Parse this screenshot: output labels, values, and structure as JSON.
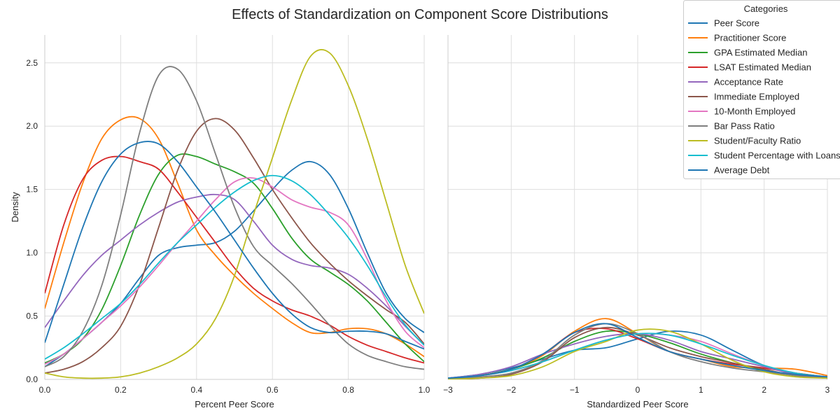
{
  "figure": {
    "title": "Effects of Standardization on Component Score Distributions"
  },
  "legend": {
    "title": "Categories",
    "placement": "top-right",
    "entries": [
      {
        "label": "Peer Score",
        "color": "#1f77b4"
      },
      {
        "label": "Practitioner Score",
        "color": "#ff7f0e"
      },
      {
        "label": "GPA Estimated Median",
        "color": "#2ca02c"
      },
      {
        "label": "LSAT Estimated Median",
        "color": "#d62728"
      },
      {
        "label": "Acceptance Rate",
        "color": "#9467bd"
      },
      {
        "label": "Immediate Employed",
        "color": "#8c564b"
      },
      {
        "label": "10-Month Employed",
        "color": "#e377c2"
      },
      {
        "label": "Bar Pass Ratio",
        "color": "#7f7f7f"
      },
      {
        "label": "Student/Faculty Ratio",
        "color": "#bcbd22"
      },
      {
        "label": "Student Percentage with Loans",
        "color": "#17becf"
      },
      {
        "label": "Average Debt",
        "color": "#1f77b4"
      }
    ]
  },
  "chart_data": [
    {
      "type": "line",
      "xlabel": "Percent Peer Score",
      "ylabel": "Density",
      "xlim": [
        0,
        1
      ],
      "ylim": [
        0,
        2.72
      ],
      "xticks": [
        "0.0",
        "0.2",
        "0.4",
        "0.6",
        "0.8",
        "1.0"
      ],
      "xtick_values": [
        0,
        0.2,
        0.4,
        0.6,
        0.8,
        1.0
      ],
      "yticks": [
        "0.0",
        "0.5",
        "1.0",
        "1.5",
        "2.0",
        "2.5"
      ],
      "ytick_values": [
        0,
        0.5,
        1.0,
        1.5,
        2.0,
        2.5
      ],
      "grid": true,
      "series": [
        {
          "name": "Peer Score",
          "color": "#1f77b4",
          "x": [
            0,
            0.05,
            0.1,
            0.15,
            0.2,
            0.25,
            0.3,
            0.35,
            0.4,
            0.45,
            0.5,
            0.55,
            0.6,
            0.65,
            0.7,
            0.75,
            0.8,
            0.85,
            0.9,
            0.95,
            1
          ],
          "y": [
            0.1,
            0.2,
            0.32,
            0.45,
            0.6,
            0.8,
            0.98,
            1.04,
            1.06,
            1.08,
            1.17,
            1.33,
            1.5,
            1.65,
            1.72,
            1.62,
            1.35,
            1.0,
            0.68,
            0.48,
            0.37
          ]
        },
        {
          "name": "Practitioner Score",
          "color": "#ff7f0e",
          "x": [
            0,
            0.05,
            0.1,
            0.15,
            0.2,
            0.25,
            0.3,
            0.35,
            0.4,
            0.45,
            0.5,
            0.55,
            0.6,
            0.65,
            0.7,
            0.75,
            0.8,
            0.85,
            0.9,
            0.95,
            1
          ],
          "y": [
            0.56,
            1.08,
            1.55,
            1.9,
            2.05,
            2.06,
            1.9,
            1.55,
            1.18,
            0.98,
            0.82,
            0.68,
            0.56,
            0.45,
            0.37,
            0.37,
            0.4,
            0.4,
            0.36,
            0.28,
            0.18
          ]
        },
        {
          "name": "GPA Estimated Median",
          "color": "#2ca02c",
          "x": [
            0,
            0.05,
            0.1,
            0.15,
            0.2,
            0.25,
            0.3,
            0.35,
            0.4,
            0.45,
            0.5,
            0.55,
            0.6,
            0.65,
            0.7,
            0.75,
            0.8,
            0.85,
            0.9,
            0.95,
            1
          ],
          "y": [
            0.13,
            0.2,
            0.32,
            0.55,
            0.9,
            1.3,
            1.62,
            1.77,
            1.76,
            1.7,
            1.64,
            1.55,
            1.35,
            1.12,
            0.95,
            0.85,
            0.75,
            0.62,
            0.45,
            0.28,
            0.14
          ]
        },
        {
          "name": "LSAT Estimated Median",
          "color": "#d62728",
          "x": [
            0,
            0.05,
            0.1,
            0.15,
            0.2,
            0.25,
            0.3,
            0.35,
            0.4,
            0.45,
            0.5,
            0.55,
            0.6,
            0.65,
            0.7,
            0.75,
            0.8,
            0.85,
            0.9,
            0.95,
            1
          ],
          "y": [
            0.68,
            1.22,
            1.58,
            1.73,
            1.76,
            1.72,
            1.66,
            1.48,
            1.28,
            1.08,
            0.88,
            0.72,
            0.62,
            0.55,
            0.5,
            0.43,
            0.34,
            0.27,
            0.22,
            0.17,
            0.13
          ]
        },
        {
          "name": "Acceptance Rate",
          "color": "#9467bd",
          "x": [
            0,
            0.05,
            0.1,
            0.15,
            0.2,
            0.25,
            0.3,
            0.35,
            0.4,
            0.45,
            0.5,
            0.55,
            0.6,
            0.65,
            0.7,
            0.75,
            0.8,
            0.85,
            0.9,
            0.95,
            1
          ],
          "y": [
            0.41,
            0.62,
            0.82,
            0.98,
            1.1,
            1.22,
            1.32,
            1.4,
            1.44,
            1.46,
            1.42,
            1.25,
            1.06,
            0.95,
            0.9,
            0.88,
            0.83,
            0.72,
            0.58,
            0.42,
            0.27
          ]
        },
        {
          "name": "Immediate Employed",
          "color": "#8c564b",
          "x": [
            0,
            0.05,
            0.1,
            0.15,
            0.2,
            0.25,
            0.3,
            0.35,
            0.4,
            0.45,
            0.5,
            0.55,
            0.6,
            0.65,
            0.7,
            0.75,
            0.8,
            0.85,
            0.9,
            0.95,
            1
          ],
          "y": [
            0.05,
            0.08,
            0.14,
            0.25,
            0.42,
            0.75,
            1.2,
            1.65,
            1.96,
            2.06,
            1.97,
            1.75,
            1.5,
            1.28,
            1.08,
            0.92,
            0.78,
            0.66,
            0.55,
            0.45,
            0.28
          ]
        },
        {
          "name": "10-Month Employed",
          "color": "#e377c2",
          "x": [
            0,
            0.05,
            0.1,
            0.15,
            0.2,
            0.25,
            0.3,
            0.35,
            0.4,
            0.45,
            0.5,
            0.55,
            0.6,
            0.65,
            0.7,
            0.75,
            0.8,
            0.85,
            0.9,
            0.95,
            1
          ],
          "y": [
            0.12,
            0.2,
            0.32,
            0.45,
            0.58,
            0.73,
            0.9,
            1.08,
            1.25,
            1.42,
            1.56,
            1.59,
            1.52,
            1.42,
            1.36,
            1.32,
            1.22,
            0.95,
            0.62,
            0.38,
            0.25
          ]
        },
        {
          "name": "Bar Pass Ratio",
          "color": "#7f7f7f",
          "x": [
            0,
            0.05,
            0.1,
            0.15,
            0.2,
            0.25,
            0.3,
            0.35,
            0.4,
            0.45,
            0.5,
            0.55,
            0.6,
            0.65,
            0.7,
            0.75,
            0.8,
            0.85,
            0.9,
            0.95,
            1
          ],
          "y": [
            0.1,
            0.18,
            0.38,
            0.74,
            1.3,
            1.95,
            2.4,
            2.45,
            2.2,
            1.78,
            1.36,
            1.05,
            0.9,
            0.76,
            0.6,
            0.43,
            0.28,
            0.19,
            0.14,
            0.1,
            0.08
          ]
        },
        {
          "name": "Student/Faculty Ratio",
          "color": "#bcbd22",
          "x": [
            0,
            0.05,
            0.1,
            0.15,
            0.2,
            0.25,
            0.3,
            0.35,
            0.4,
            0.45,
            0.5,
            0.55,
            0.6,
            0.65,
            0.7,
            0.75,
            0.8,
            0.85,
            0.9,
            0.95,
            1
          ],
          "y": [
            0.05,
            0.02,
            0.01,
            0.01,
            0.02,
            0.05,
            0.1,
            0.17,
            0.28,
            0.48,
            0.82,
            1.3,
            1.75,
            2.2,
            2.55,
            2.58,
            2.32,
            1.9,
            1.4,
            0.9,
            0.52
          ]
        },
        {
          "name": "Student Percentage with Loans",
          "color": "#17becf",
          "x": [
            0,
            0.05,
            0.1,
            0.15,
            0.2,
            0.25,
            0.3,
            0.35,
            0.4,
            0.45,
            0.5,
            0.55,
            0.6,
            0.65,
            0.7,
            0.75,
            0.8,
            0.85,
            0.9,
            0.95,
            1
          ],
          "y": [
            0.16,
            0.25,
            0.36,
            0.48,
            0.6,
            0.75,
            0.92,
            1.08,
            1.22,
            1.36,
            1.48,
            1.57,
            1.61,
            1.57,
            1.46,
            1.3,
            1.12,
            0.9,
            0.65,
            0.43,
            0.27
          ]
        },
        {
          "name": "Average Debt",
          "color": "#1f77b4",
          "x": [
            0,
            0.05,
            0.1,
            0.15,
            0.2,
            0.25,
            0.3,
            0.35,
            0.4,
            0.45,
            0.5,
            0.55,
            0.6,
            0.65,
            0.7,
            0.75,
            0.8,
            0.85,
            0.9,
            0.95,
            1
          ],
          "y": [
            0.29,
            0.75,
            1.2,
            1.56,
            1.78,
            1.87,
            1.86,
            1.72,
            1.52,
            1.32,
            1.1,
            0.88,
            0.68,
            0.52,
            0.41,
            0.37,
            0.38,
            0.38,
            0.36,
            0.3,
            0.24
          ]
        }
      ]
    },
    {
      "type": "line",
      "xlabel": "Standardized Peer Score",
      "ylabel": "",
      "xlim": [
        -3,
        3
      ],
      "ylim": [
        0,
        2.72
      ],
      "xticks": [
        "−3",
        "−2",
        "−1",
        "0",
        "1",
        "2",
        "3"
      ],
      "xtick_values": [
        -3,
        -2,
        -1,
        0,
        1,
        2,
        3
      ],
      "grid": true,
      "shared_y": true,
      "series": [
        {
          "name": "Peer Score",
          "color": "#1f77b4",
          "x": [
            -3,
            -2.5,
            -2,
            -1.5,
            -1,
            -0.5,
            0,
            0.5,
            1,
            1.5,
            2,
            2.5,
            3
          ],
          "y": [
            0.01,
            0.04,
            0.09,
            0.16,
            0.23,
            0.25,
            0.32,
            0.38,
            0.35,
            0.23,
            0.11,
            0.05,
            0.02
          ]
        },
        {
          "name": "Practitioner Score",
          "color": "#ff7f0e",
          "x": [
            -3,
            -2.5,
            -2,
            -1.5,
            -1,
            -0.5,
            0,
            0.5,
            1,
            1.5,
            2,
            2.5,
            3
          ],
          "y": [
            0.01,
            0.03,
            0.08,
            0.19,
            0.38,
            0.48,
            0.36,
            0.22,
            0.16,
            0.1,
            0.09,
            0.08,
            0.03
          ]
        },
        {
          "name": "GPA Estimated Median",
          "color": "#2ca02c",
          "x": [
            -3,
            -2.5,
            -2,
            -1.5,
            -1,
            -0.5,
            0,
            0.5,
            1,
            1.5,
            2,
            2.5,
            3
          ],
          "y": [
            0.01,
            0.03,
            0.08,
            0.17,
            0.3,
            0.38,
            0.36,
            0.29,
            0.2,
            0.13,
            0.07,
            0.03,
            0.01
          ]
        },
        {
          "name": "LSAT Estimated Median",
          "color": "#d62728",
          "x": [
            -3,
            -2.5,
            -2,
            -1.5,
            -1,
            -0.5,
            0,
            0.5,
            1,
            1.5,
            2,
            2.5,
            3
          ],
          "y": [
            0.0,
            0.03,
            0.08,
            0.2,
            0.37,
            0.4,
            0.32,
            0.22,
            0.16,
            0.12,
            0.09,
            0.05,
            0.02
          ]
        },
        {
          "name": "Acceptance Rate",
          "color": "#9467bd",
          "x": [
            -3,
            -2.5,
            -2,
            -1.5,
            -1,
            -0.5,
            0,
            0.5,
            1,
            1.5,
            2,
            2.5,
            3
          ],
          "y": [
            0.01,
            0.04,
            0.1,
            0.2,
            0.28,
            0.34,
            0.36,
            0.31,
            0.22,
            0.16,
            0.1,
            0.04,
            0.01
          ]
        },
        {
          "name": "Immediate Employed",
          "color": "#8c564b",
          "x": [
            -3,
            -2.5,
            -2,
            -1.5,
            -1,
            -0.5,
            0,
            0.5,
            1,
            1.5,
            2,
            2.5,
            3
          ],
          "y": [
            0.0,
            0.01,
            0.04,
            0.14,
            0.33,
            0.41,
            0.35,
            0.25,
            0.18,
            0.13,
            0.08,
            0.03,
            0.01
          ]
        },
        {
          "name": "10-Month Employed",
          "color": "#e377c2",
          "x": [
            -3,
            -2.5,
            -2,
            -1.5,
            -1,
            -0.5,
            0,
            0.5,
            1,
            1.5,
            2,
            2.5,
            3
          ],
          "y": [
            0.01,
            0.03,
            0.07,
            0.14,
            0.23,
            0.31,
            0.36,
            0.35,
            0.3,
            0.2,
            0.11,
            0.05,
            0.02
          ]
        },
        {
          "name": "Bar Pass Ratio",
          "color": "#7f7f7f",
          "x": [
            -3,
            -2.5,
            -2,
            -1.5,
            -1,
            -0.5,
            0,
            0.5,
            1,
            1.5,
            2,
            2.5,
            3
          ],
          "y": [
            0.0,
            0.02,
            0.05,
            0.15,
            0.35,
            0.44,
            0.36,
            0.22,
            0.14,
            0.09,
            0.06,
            0.03,
            0.01
          ]
        },
        {
          "name": "Student/Faculty Ratio",
          "color": "#bcbd22",
          "x": [
            -3,
            -2.5,
            -2,
            -1.5,
            -1,
            -0.5,
            0,
            0.5,
            1,
            1.5,
            2,
            2.5,
            3
          ],
          "y": [
            0.0,
            0.01,
            0.03,
            0.1,
            0.22,
            0.3,
            0.39,
            0.38,
            0.28,
            0.15,
            0.06,
            0.02,
            0.01
          ]
        },
        {
          "name": "Student Percentage with Loans",
          "color": "#17becf",
          "x": [
            -3,
            -2.5,
            -2,
            -1.5,
            -1,
            -0.5,
            0,
            0.5,
            1,
            1.5,
            2,
            2.5,
            3
          ],
          "y": [
            0.01,
            0.03,
            0.07,
            0.14,
            0.23,
            0.31,
            0.36,
            0.35,
            0.28,
            0.19,
            0.11,
            0.05,
            0.02
          ]
        },
        {
          "name": "Average Debt",
          "color": "#1f77b4",
          "x": [
            -3,
            -2.5,
            -2,
            -1.5,
            -1,
            -0.5,
            0,
            0.5,
            1,
            1.5,
            2,
            2.5,
            3
          ],
          "y": [
            0.01,
            0.03,
            0.08,
            0.2,
            0.37,
            0.44,
            0.33,
            0.22,
            0.16,
            0.11,
            0.07,
            0.04,
            0.02
          ]
        }
      ]
    }
  ]
}
